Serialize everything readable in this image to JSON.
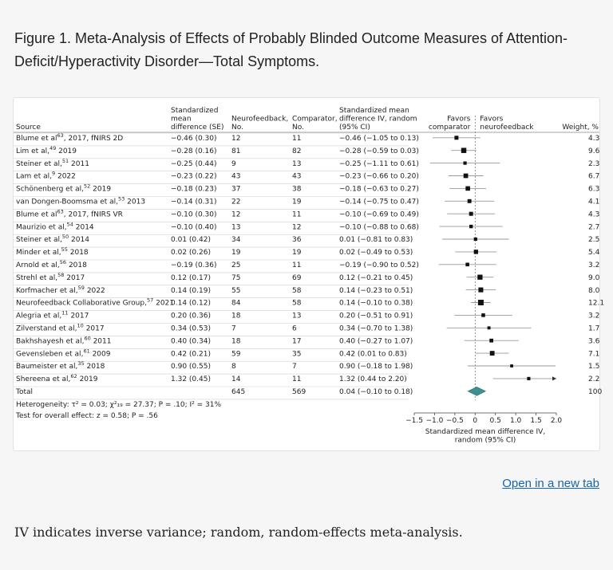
{
  "caption": "Figure 1. Meta-Analysis of Effects of Probably Blinded Outcome Measures of Attention-Deficit/Hyperactivity Disorder—Total Symptoms.",
  "open_link": "Open in a new tab",
  "footnote": "IV indicates inverse variance; random, random-effects meta-analysis.",
  "chart_data": {
    "type": "forest",
    "columns": {
      "source": "Source",
      "smd_se": [
        "Standardized",
        "mean",
        "difference (SE)"
      ],
      "nf_n": [
        "Neurofeedback,",
        "No."
      ],
      "comp_n": [
        "Comparator,",
        "No."
      ],
      "ci": [
        "Standardized mean",
        "difference IV, random",
        "(95% CI)"
      ],
      "favors_left": [
        "Favors",
        "comparator"
      ],
      "favors_right": [
        "Favors",
        "neurofeedback"
      ],
      "weight": "Weight, %"
    },
    "studies": [
      {
        "source": "Blume et al",
        "ref": "63",
        "suffix": ", 2017, fNIRS 2D",
        "smd_se": "−0.46 (0.30)",
        "nf": "12",
        "comp": "11",
        "ci_text": "−0.46 (−1.05 to 0.13)",
        "est": -0.46,
        "lo": -1.05,
        "hi": 0.13,
        "weight": "4.3"
      },
      {
        "source": "Lim et al,",
        "ref": "49",
        "suffix": " 2019",
        "smd_se": "−0.28 (0.16)",
        "nf": "81",
        "comp": "82",
        "ci_text": "−0.28 (−0.59 to 0.03)",
        "est": -0.28,
        "lo": -0.59,
        "hi": 0.03,
        "weight": "9.6"
      },
      {
        "source": "Steiner et al,",
        "ref": "51",
        "suffix": " 2011",
        "smd_se": "−0.25 (0.44)",
        "nf": "9",
        "comp": "13",
        "ci_text": "−0.25 (−1.11 to 0.61)",
        "est": -0.25,
        "lo": -1.11,
        "hi": 0.61,
        "weight": "2.3"
      },
      {
        "source": "Lam et al,",
        "ref": "9",
        "suffix": " 2022",
        "smd_se": "−0.23 (0.22)",
        "nf": "43",
        "comp": "43",
        "ci_text": "−0.23 (−0.66 to 0.20)",
        "est": -0.23,
        "lo": -0.66,
        "hi": 0.2,
        "weight": "6.7"
      },
      {
        "source": "Schönenberg et al,",
        "ref": "52",
        "suffix": " 2019",
        "smd_se": "−0.18 (0.23)",
        "nf": "37",
        "comp": "38",
        "ci_text": "−0.18 (−0.63 to 0.27)",
        "est": -0.18,
        "lo": -0.63,
        "hi": 0.27,
        "weight": "6.3"
      },
      {
        "source": "van Dongen-Boomsma et al,",
        "ref": "53",
        "suffix": " 2013",
        "smd_se": "−0.14 (0.31)",
        "nf": "22",
        "comp": "19",
        "ci_text": "−0.14 (−0.75 to 0.47)",
        "est": -0.14,
        "lo": -0.75,
        "hi": 0.47,
        "weight": "4.1"
      },
      {
        "source": "Blume et al",
        "ref": "63",
        "suffix": ", 2017, fNIRS VR",
        "smd_se": "−0.10 (0.30)",
        "nf": "12",
        "comp": "11",
        "ci_text": "−0.10 (−0.69 to 0.49)",
        "est": -0.1,
        "lo": -0.69,
        "hi": 0.49,
        "weight": "4.3"
      },
      {
        "source": "Maurizio et al,",
        "ref": "54",
        "suffix": " 2014",
        "smd_se": "−0.10 (0.40)",
        "nf": "13",
        "comp": "12",
        "ci_text": "−0.10 (−0.88 to 0.68)",
        "est": -0.1,
        "lo": -0.88,
        "hi": 0.68,
        "weight": "2.7"
      },
      {
        "source": "Steiner et al,",
        "ref": "50",
        "suffix": " 2014",
        "smd_se": "0.01 (0.42)",
        "nf": "34",
        "comp": "36",
        "ci_text": "0.01 (−0.81 to 0.83)",
        "est": 0.01,
        "lo": -0.81,
        "hi": 0.83,
        "weight": "2.5"
      },
      {
        "source": "Minder et al,",
        "ref": "55",
        "suffix": " 2018",
        "smd_se": "0.02 (0.26)",
        "nf": "19",
        "comp": "19",
        "ci_text": "0.02 (−0.49 to 0.53)",
        "est": 0.02,
        "lo": -0.49,
        "hi": 0.53,
        "weight": "5.4"
      },
      {
        "source": "Arnold et al,",
        "ref": "56",
        "suffix": " 2018",
        "smd_se": "−0.19 (0.36)",
        "nf": "25",
        "comp": "11",
        "ci_text": "−0.19 (−0.90 to 0.52)",
        "est": -0.19,
        "lo": -0.9,
        "hi": 0.52,
        "weight": "3.2"
      },
      {
        "source": "Strehl et al,",
        "ref": "58",
        "suffix": " 2017",
        "smd_se": "0.12 (0.17)",
        "nf": "75",
        "comp": "69",
        "ci_text": "0.12 (−0.21 to 0.45)",
        "est": 0.12,
        "lo": -0.21,
        "hi": 0.45,
        "weight": "9.0"
      },
      {
        "source": "Korfmacher et al,",
        "ref": "59",
        "suffix": " 2022",
        "smd_se": "0.14 (0.19)",
        "nf": "55",
        "comp": "58",
        "ci_text": "0.14 (−0.23 to 0.51)",
        "est": 0.14,
        "lo": -0.23,
        "hi": 0.51,
        "weight": "8.0"
      },
      {
        "source": "Neurofeedback Collaborative Group,",
        "ref": "57",
        "suffix": " 2021",
        "smd_se": "0.14 (0.12)",
        "nf": "84",
        "comp": "58",
        "ci_text": "0.14 (−0.10 to 0.38)",
        "est": 0.14,
        "lo": -0.1,
        "hi": 0.38,
        "weight": "12.1"
      },
      {
        "source": "Alegria et al,",
        "ref": "11",
        "suffix": " 2017",
        "smd_se": "0.20 (0.36)",
        "nf": "18",
        "comp": "13",
        "ci_text": "0.20 (−0.51 to 0.91)",
        "est": 0.2,
        "lo": -0.51,
        "hi": 0.91,
        "weight": "3.2"
      },
      {
        "source": "Zilverstand et al,",
        "ref": "10",
        "suffix": " 2017",
        "smd_se": "0.34 (0.53)",
        "nf": "7",
        "comp": "6",
        "ci_text": "0.34 (−0.70 to 1.38)",
        "est": 0.34,
        "lo": -0.7,
        "hi": 1.38,
        "weight": "1.7"
      },
      {
        "source": "Bakhshayesh et al,",
        "ref": "60",
        "suffix": " 2011",
        "smd_se": "0.40 (0.34)",
        "nf": "18",
        "comp": "17",
        "ci_text": "0.40 (−0.27 to 1.07)",
        "est": 0.4,
        "lo": -0.27,
        "hi": 1.07,
        "weight": "3.6"
      },
      {
        "source": "Gevensleben et al,",
        "ref": "61",
        "suffix": " 2009",
        "smd_se": "0.42 (0.21)",
        "nf": "59",
        "comp": "35",
        "ci_text": "0.42 (0.01 to 0.83)",
        "est": 0.42,
        "lo": 0.01,
        "hi": 0.83,
        "weight": "7.1"
      },
      {
        "source": "Baumeister et al,",
        "ref": "35",
        "suffix": " 2018",
        "smd_se": "0.90 (0.55)",
        "nf": "8",
        "comp": "7",
        "ci_text": "0.90 (−0.18 to 1.98)",
        "est": 0.9,
        "lo": -0.18,
        "hi": 1.98,
        "weight": "1.5"
      },
      {
        "source": "Shereena et al,",
        "ref": "62",
        "suffix": " 2019",
        "smd_se": "1.32 (0.45)",
        "nf": "14",
        "comp": "11",
        "ci_text": "1.32 (0.44 to 2.20)",
        "est": 1.32,
        "lo": 0.44,
        "hi": 2.2,
        "weight": "2.2",
        "arrow_right": true
      }
    ],
    "total": {
      "source": "Total",
      "nf": "645",
      "comp": "569",
      "ci_text": "0.04 (−0.10 to 0.18)",
      "est": 0.04,
      "lo": -0.1,
      "hi": 0.18,
      "weight": "100"
    },
    "heterogeneity_text": "Heterogeneity: τ² = 0.03; χ²₁₉ = 27.37; P = .10; I² = 31%",
    "overall_effect_text": "Test for overall effect: z = 0.58; P = .56",
    "xaxis": {
      "label": [
        "Standardized mean difference IV,",
        "random (95% CI)"
      ],
      "ticks": [
        -1.5,
        -1.0,
        -0.5,
        0,
        0.5,
        1.0,
        1.5,
        2.0
      ],
      "tick_labels": [
        "−1.5",
        "−1.0",
        "−0.5",
        "0",
        "0.5",
        "1.0",
        "1.5",
        "2.0"
      ],
      "xlim": [
        -1.5,
        2.0
      ]
    },
    "colors": {
      "square": "#111111",
      "diamond": "#3f8f8f",
      "ci_line": "#999999"
    }
  }
}
